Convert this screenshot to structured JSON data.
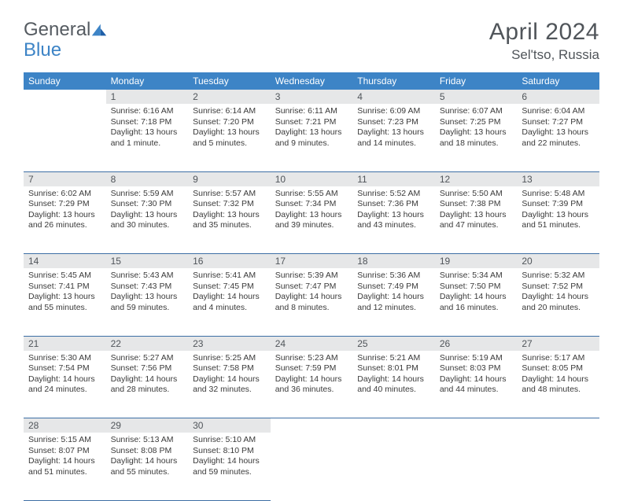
{
  "logo": {
    "text1": "General",
    "text2": "Blue"
  },
  "title": "April 2024",
  "location": "Sel'tso, Russia",
  "weekdays": [
    "Sunday",
    "Monday",
    "Tuesday",
    "Wednesday",
    "Thursday",
    "Friday",
    "Saturday"
  ],
  "colors": {
    "header_bg": "#3d84c6",
    "header_text": "#ffffff",
    "daynum_bg": "#e6e7e8",
    "border": "#3d6fa5",
    "title_text": "#50555a"
  },
  "weeks": [
    [
      null,
      {
        "n": "1",
        "sunrise": "6:16 AM",
        "sunset": "7:18 PM",
        "day": "13 hours and 1 minute."
      },
      {
        "n": "2",
        "sunrise": "6:14 AM",
        "sunset": "7:20 PM",
        "day": "13 hours and 5 minutes."
      },
      {
        "n": "3",
        "sunrise": "6:11 AM",
        "sunset": "7:21 PM",
        "day": "13 hours and 9 minutes."
      },
      {
        "n": "4",
        "sunrise": "6:09 AM",
        "sunset": "7:23 PM",
        "day": "13 hours and 14 minutes."
      },
      {
        "n": "5",
        "sunrise": "6:07 AM",
        "sunset": "7:25 PM",
        "day": "13 hours and 18 minutes."
      },
      {
        "n": "6",
        "sunrise": "6:04 AM",
        "sunset": "7:27 PM",
        "day": "13 hours and 22 minutes."
      }
    ],
    [
      {
        "n": "7",
        "sunrise": "6:02 AM",
        "sunset": "7:29 PM",
        "day": "13 hours and 26 minutes."
      },
      {
        "n": "8",
        "sunrise": "5:59 AM",
        "sunset": "7:30 PM",
        "day": "13 hours and 30 minutes."
      },
      {
        "n": "9",
        "sunrise": "5:57 AM",
        "sunset": "7:32 PM",
        "day": "13 hours and 35 minutes."
      },
      {
        "n": "10",
        "sunrise": "5:55 AM",
        "sunset": "7:34 PM",
        "day": "13 hours and 39 minutes."
      },
      {
        "n": "11",
        "sunrise": "5:52 AM",
        "sunset": "7:36 PM",
        "day": "13 hours and 43 minutes."
      },
      {
        "n": "12",
        "sunrise": "5:50 AM",
        "sunset": "7:38 PM",
        "day": "13 hours and 47 minutes."
      },
      {
        "n": "13",
        "sunrise": "5:48 AM",
        "sunset": "7:39 PM",
        "day": "13 hours and 51 minutes."
      }
    ],
    [
      {
        "n": "14",
        "sunrise": "5:45 AM",
        "sunset": "7:41 PM",
        "day": "13 hours and 55 minutes."
      },
      {
        "n": "15",
        "sunrise": "5:43 AM",
        "sunset": "7:43 PM",
        "day": "13 hours and 59 minutes."
      },
      {
        "n": "16",
        "sunrise": "5:41 AM",
        "sunset": "7:45 PM",
        "day": "14 hours and 4 minutes."
      },
      {
        "n": "17",
        "sunrise": "5:39 AM",
        "sunset": "7:47 PM",
        "day": "14 hours and 8 minutes."
      },
      {
        "n": "18",
        "sunrise": "5:36 AM",
        "sunset": "7:49 PM",
        "day": "14 hours and 12 minutes."
      },
      {
        "n": "19",
        "sunrise": "5:34 AM",
        "sunset": "7:50 PM",
        "day": "14 hours and 16 minutes."
      },
      {
        "n": "20",
        "sunrise": "5:32 AM",
        "sunset": "7:52 PM",
        "day": "14 hours and 20 minutes."
      }
    ],
    [
      {
        "n": "21",
        "sunrise": "5:30 AM",
        "sunset": "7:54 PM",
        "day": "14 hours and 24 minutes."
      },
      {
        "n": "22",
        "sunrise": "5:27 AM",
        "sunset": "7:56 PM",
        "day": "14 hours and 28 minutes."
      },
      {
        "n": "23",
        "sunrise": "5:25 AM",
        "sunset": "7:58 PM",
        "day": "14 hours and 32 minutes."
      },
      {
        "n": "24",
        "sunrise": "5:23 AM",
        "sunset": "7:59 PM",
        "day": "14 hours and 36 minutes."
      },
      {
        "n": "25",
        "sunrise": "5:21 AM",
        "sunset": "8:01 PM",
        "day": "14 hours and 40 minutes."
      },
      {
        "n": "26",
        "sunrise": "5:19 AM",
        "sunset": "8:03 PM",
        "day": "14 hours and 44 minutes."
      },
      {
        "n": "27",
        "sunrise": "5:17 AM",
        "sunset": "8:05 PM",
        "day": "14 hours and 48 minutes."
      }
    ],
    [
      {
        "n": "28",
        "sunrise": "5:15 AM",
        "sunset": "8:07 PM",
        "day": "14 hours and 51 minutes."
      },
      {
        "n": "29",
        "sunrise": "5:13 AM",
        "sunset": "8:08 PM",
        "day": "14 hours and 55 minutes."
      },
      {
        "n": "30",
        "sunrise": "5:10 AM",
        "sunset": "8:10 PM",
        "day": "14 hours and 59 minutes."
      },
      null,
      null,
      null,
      null
    ]
  ],
  "labels": {
    "sunrise": "Sunrise:",
    "sunset": "Sunset:",
    "daylight": "Daylight:"
  }
}
